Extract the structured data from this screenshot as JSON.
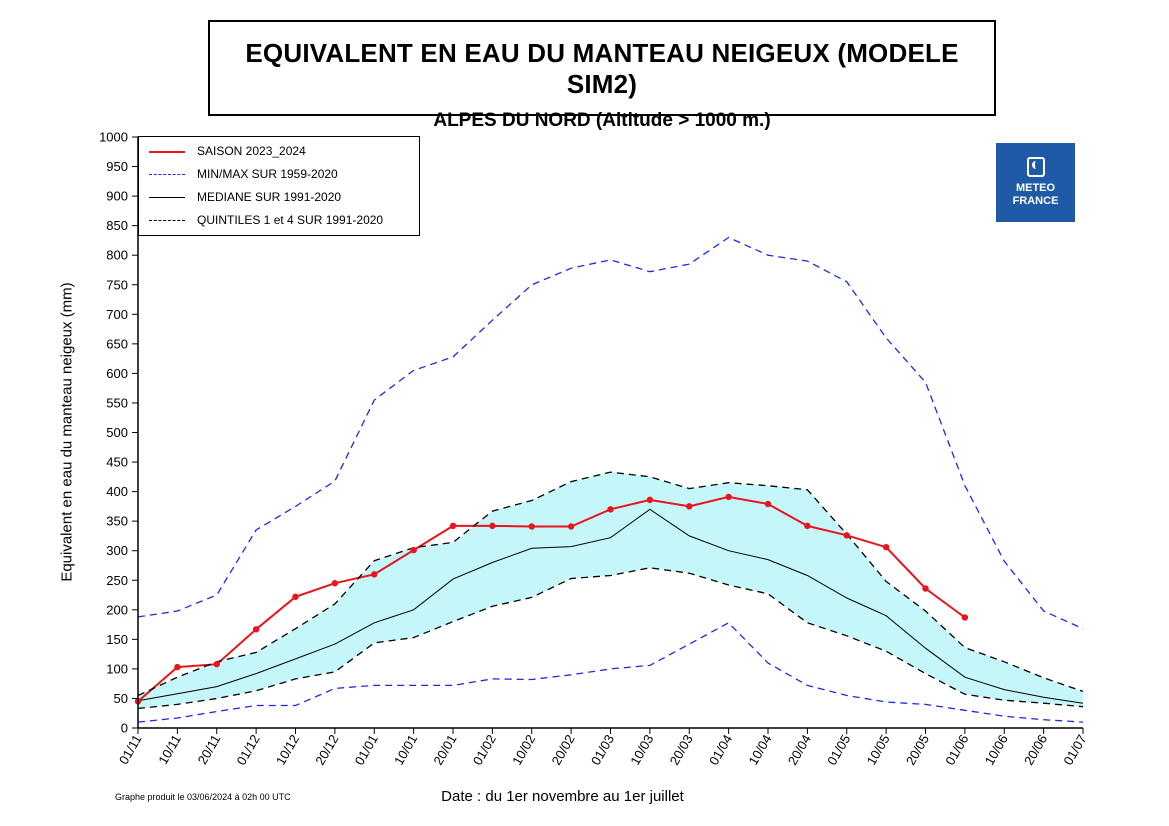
{
  "title": "EQUIVALENT EN EAU DU MANTEAU NEIGEUX (MODELE SIM2)",
  "subtitle": "ALPES DU NORD (Altitude > 1000 m.)",
  "footer_note": "Graphe produit le 03/06/2024 à 02h 00 UTC",
  "logo": {
    "line1": "METEO",
    "line2": "FRANCE",
    "color": "#1f5aa6"
  },
  "chart_data": {
    "type": "line",
    "xlabel": "Date : du 1er novembre au 1er juillet",
    "ylabel": "Equivalent en eau du manteau neigeux (mm)",
    "ylim": [
      0,
      1000
    ],
    "yticks": [
      0,
      50,
      100,
      150,
      200,
      250,
      300,
      350,
      400,
      450,
      500,
      550,
      600,
      650,
      700,
      750,
      800,
      850,
      900,
      950,
      1000
    ],
    "categories": [
      "01/11",
      "10/11",
      "20/11",
      "01/12",
      "10/12",
      "20/12",
      "01/01",
      "10/01",
      "20/01",
      "01/02",
      "10/02",
      "20/02",
      "01/03",
      "10/03",
      "20/03",
      "01/04",
      "10/04",
      "20/04",
      "01/05",
      "10/05",
      "20/05",
      "01/06",
      "10/06",
      "20/06",
      "01/07"
    ],
    "legend_position": "top-left",
    "band_color": "#c4f6fa",
    "series": [
      {
        "name": "SAISON 2023_2024",
        "color": "#e8141e",
        "style": "solid-markers",
        "values": [
          45,
          103,
          108,
          167,
          222,
          245,
          260,
          301,
          342,
          342,
          341,
          341,
          370,
          386,
          375,
          391,
          379,
          342,
          326,
          306,
          236,
          187,
          null,
          null,
          null
        ]
      },
      {
        "name": "MIN/MAX SUR 1959-2020",
        "color": "#1a2be6",
        "style": "dashed",
        "values": [
          188,
          198,
          225,
          335,
          375,
          418,
          555,
          605,
          628,
          690,
          750,
          778,
          792,
          772,
          785,
          830,
          800,
          790,
          755,
          660,
          585,
          410,
          282,
          198,
          168
        ]
      },
      {
        "name": "",
        "legend": false,
        "color": "#1a2be6",
        "style": "dashed",
        "values": [
          10,
          17,
          28,
          38,
          38,
          67,
          72,
          72,
          72,
          83,
          82,
          90,
          100,
          106,
          142,
          178,
          110,
          72,
          55,
          44,
          40,
          30,
          20,
          14,
          10
        ]
      },
      {
        "name": "MEDIANE SUR 1991-2020",
        "color": "#000000",
        "style": "solid",
        "values": [
          46,
          58,
          70,
          92,
          117,
          142,
          178,
          200,
          252,
          280,
          304,
          307,
          322,
          370,
          325,
          300,
          285,
          258,
          220,
          190,
          135,
          86,
          65,
          52,
          42
        ]
      },
      {
        "name": "QUINTILES 1 et 4 SUR 1991-2020",
        "color": "#000000",
        "style": "dashed",
        "values": [
          55,
          86,
          112,
          128,
          168,
          210,
          283,
          305,
          314,
          367,
          385,
          417,
          433,
          425,
          405,
          415,
          410,
          403,
          328,
          248,
          198,
          136,
          112,
          85,
          62
        ]
      },
      {
        "name": "",
        "legend": false,
        "color": "#000000",
        "style": "dashed",
        "values": [
          33,
          40,
          50,
          63,
          83,
          95,
          144,
          153,
          180,
          206,
          221,
          253,
          258,
          271,
          262,
          242,
          227,
          178,
          156,
          130,
          92,
          57,
          47,
          42,
          36
        ]
      }
    ]
  }
}
